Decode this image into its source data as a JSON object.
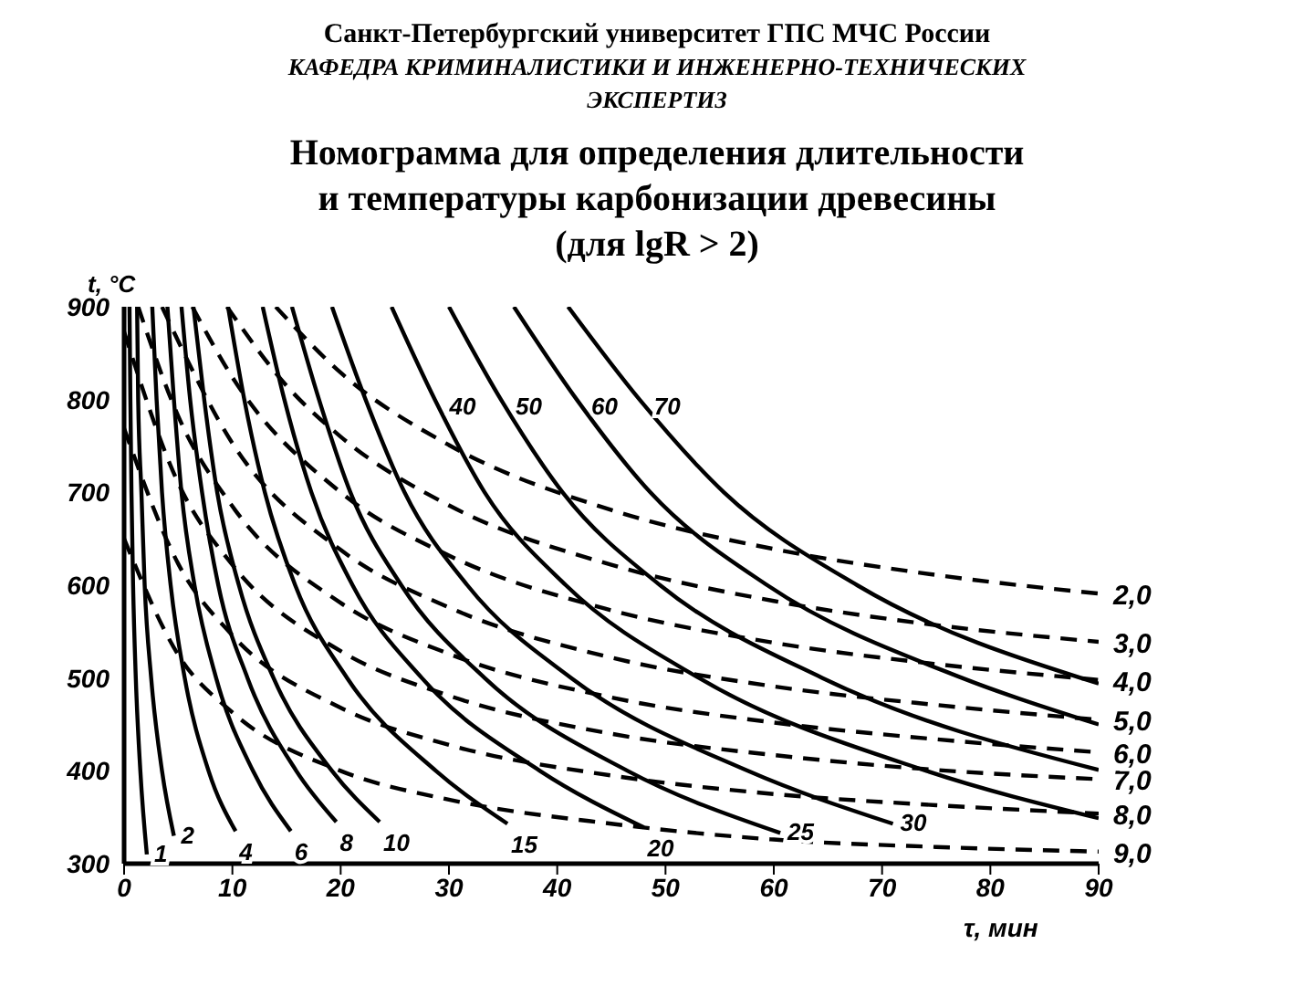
{
  "chart_data": {
    "type": "line",
    "annotations": [
      "Санкт-Петербургский университет ГПС МЧС России",
      "КАФЕДРА КРИМИНАЛИСТИКИ И ИНЖЕНЕРНО-ТЕХНИЧЕСКИХ ЭКСПЕРТИЗ"
    ],
    "title": "Номограмма для определения длительности и температуры карбонизации древесины (для lgR > 2)",
    "xlabel": "τ, мин",
    "ylabel": "t, °C",
    "xlim": [
      0,
      90
    ],
    "xticks": [
      0,
      10,
      20,
      30,
      40,
      50,
      60,
      70,
      80,
      90
    ],
    "ylim": [
      300,
      900
    ],
    "yticks": [
      300,
      400,
      500,
      600,
      700,
      800,
      900
    ],
    "marker": "none",
    "line_style": "solid",
    "series": [
      {
        "name": "1",
        "color": "#000000",
        "x": [
          0.5,
          0.58,
          0.68,
          0.83,
          1.08,
          1.5,
          2.1
        ],
        "values": [
          900,
          800,
          700,
          600,
          500,
          400,
          310
        ]
      },
      {
        "name": "2",
        "color": "#000000",
        "x": [
          1.2,
          1.3,
          1.6,
          1.9,
          2.5,
          3.5,
          4.6
        ],
        "values": [
          900,
          800,
          700,
          600,
          500,
          400,
          330
        ]
      },
      {
        "name": "4",
        "color": "#000000",
        "x": [
          2.6,
          3.0,
          3.5,
          4.3,
          5.6,
          7.8,
          10.3
        ],
        "values": [
          900,
          800,
          700,
          600,
          500,
          400,
          335
        ]
      },
      {
        "name": "6",
        "color": "#000000",
        "x": [
          4.0,
          4.6,
          5.3,
          6.5,
          8.5,
          11.9,
          15.4
        ],
        "values": [
          900,
          800,
          700,
          600,
          500,
          400,
          335
        ]
      },
      {
        "name": "8",
        "color": "#000000",
        "x": [
          5.3,
          6.1,
          7.2,
          8.7,
          11.4,
          15.9,
          19.6
        ],
        "values": [
          900,
          800,
          700,
          600,
          500,
          400,
          345
        ]
      },
      {
        "name": "10",
        "color": "#000000",
        "x": [
          6.4,
          7.4,
          8.6,
          10.6,
          13.8,
          19.2,
          23.6
        ],
        "values": [
          900,
          800,
          700,
          600,
          500,
          400,
          345
        ]
      },
      {
        "name": "15",
        "color": "#000000",
        "x": [
          9.6,
          11.1,
          13,
          15.8,
          20.6,
          28.8,
          35.4
        ],
        "values": [
          900,
          800,
          700,
          600,
          500,
          400,
          343
        ]
      },
      {
        "name": "20",
        "color": "#000000",
        "x": [
          12.8,
          14.8,
          17.3,
          21.1,
          27.5,
          38.4,
          48
        ],
        "values": [
          900,
          800,
          700,
          600,
          500,
          400,
          339
        ]
      },
      {
        "name": "25",
        "color": "#000000",
        "x": [
          15.5,
          18,
          20.9,
          25.6,
          33.3,
          46.5,
          60.6
        ],
        "values": [
          900,
          800,
          700,
          600,
          500,
          400,
          333
        ]
      },
      {
        "name": "30",
        "color": "#000000",
        "x": [
          19.2,
          22.3,
          25.9,
          31.7,
          41.3,
          57.6,
          71
        ],
        "values": [
          900,
          800,
          700,
          600,
          500,
          400,
          343
        ]
      },
      {
        "name": "40",
        "color": "#000000",
        "x": [
          24.7,
          28.7,
          33.3,
          40.8,
          53.1,
          74.1,
          90
        ],
        "values": [
          900,
          800,
          700,
          600,
          500,
          400,
          349
        ]
      },
      {
        "name": "50",
        "color": "#000000",
        "x": [
          30,
          34.8,
          40.5,
          49.5,
          64.5,
          90
        ],
        "values": [
          900,
          800,
          700,
          600,
          500,
          401
        ]
      },
      {
        "name": "60",
        "color": "#000000",
        "x": [
          36,
          41.8,
          48.6,
          59.4,
          77.4,
          90
        ],
        "values": [
          900,
          800,
          700,
          600,
          500,
          450
        ]
      },
      {
        "name": "70",
        "color": "#000000",
        "x": [
          41,
          47.6,
          55.4,
          67.7,
          90
        ],
        "values": [
          900,
          800,
          700,
          600,
          494
        ]
      },
      {
        "name": "2,0",
        "color": "#000000",
        "line_style": "dashed",
        "x": [
          14,
          20,
          30,
          45,
          60,
          75,
          90
        ],
        "values": [
          900,
          829,
          751,
          681,
          639,
          611,
          591
        ]
      },
      {
        "name": "3,0",
        "color": "#000000",
        "line_style": "dashed",
        "x": [
          9.5,
          15,
          20,
          30,
          45,
          60,
          75,
          90
        ],
        "values": [
          900,
          815,
          760,
          686,
          622,
          583,
          557,
          539
        ]
      },
      {
        "name": "4,0",
        "color": "#000000",
        "line_style": "dashed",
        "x": [
          6.3,
          10,
          20,
          30,
          45,
          60,
          75,
          90
        ],
        "values": [
          900,
          824,
          700,
          632,
          573,
          538,
          515,
          498
        ]
      },
      {
        "name": "5,0",
        "color": "#000000",
        "line_style": "dashed",
        "x": [
          3.5,
          10,
          20,
          30,
          45,
          60,
          75,
          90
        ],
        "values": [
          900,
          753,
          638,
          576,
          522,
          491,
          471,
          455
        ]
      },
      {
        "name": "6,0",
        "color": "#000000",
        "line_style": "dashed",
        "x": [
          1.3,
          5,
          10,
          20,
          30,
          45,
          60,
          75,
          90
        ],
        "values": [
          900,
          782,
          685,
          581,
          526,
          479,
          452,
          434,
          420
        ]
      },
      {
        "name": "7,0",
        "color": "#000000",
        "line_style": "dashed",
        "x": [
          0,
          5,
          10,
          20,
          30,
          45,
          60,
          75,
          90
        ],
        "values": [
          873,
          710,
          622,
          529,
          481,
          440,
          417,
          401,
          391
        ]
      },
      {
        "name": "8,0",
        "color": "#000000",
        "line_style": "dashed",
        "x": [
          0,
          5,
          10,
          20,
          30,
          45,
          60,
          75,
          90
        ],
        "values": [
          769,
          623,
          546,
          468,
          428,
          395,
          375,
          363,
          354
        ]
      },
      {
        "name": "9,0",
        "color": "#000000",
        "line_style": "dashed",
        "x": [
          0,
          5,
          10,
          20,
          30,
          45,
          60,
          75,
          90
        ],
        "values": [
          650,
          525,
          463,
          400,
          369,
          343,
          326,
          318,
          313
        ]
      }
    ]
  }
}
